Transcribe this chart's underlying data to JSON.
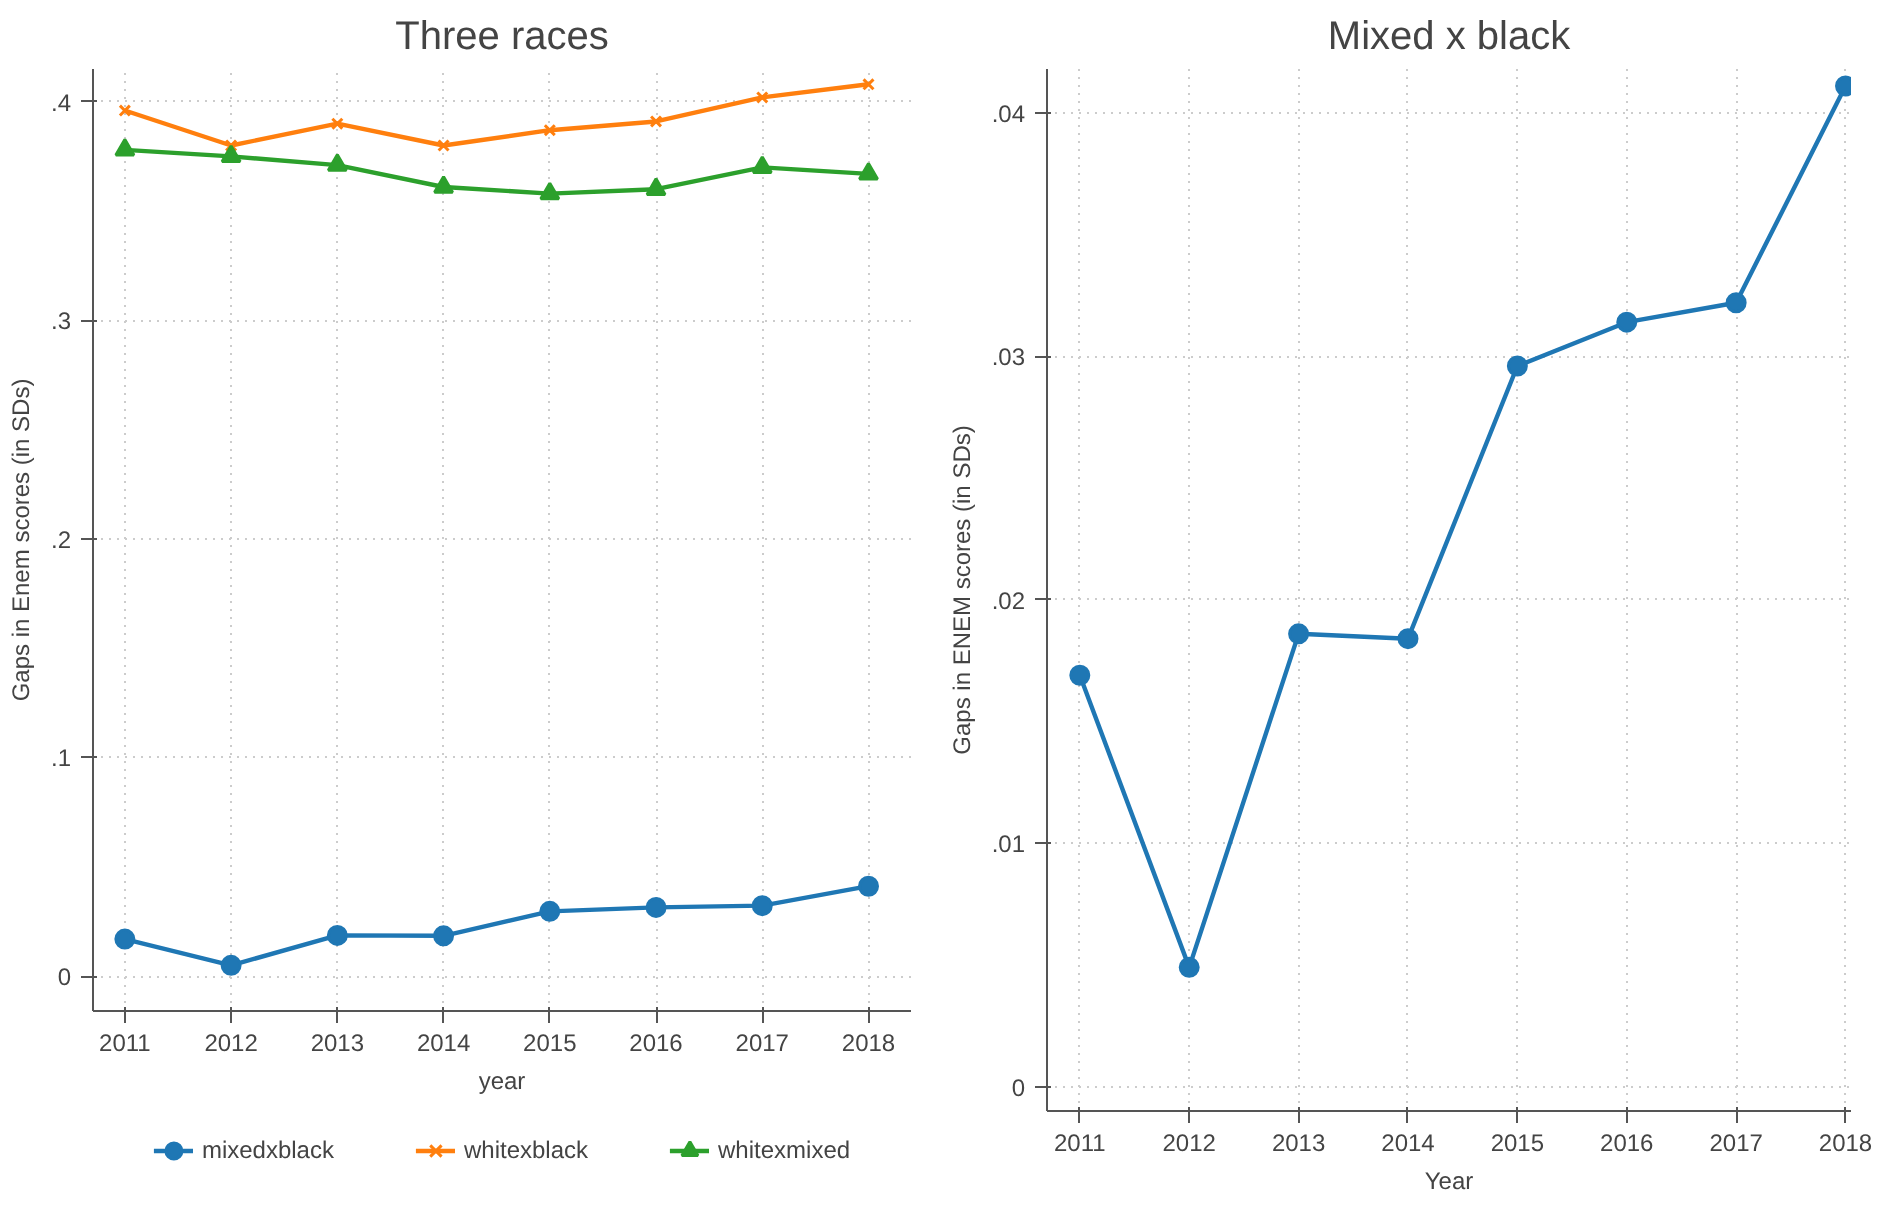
{
  "chart_data": [
    {
      "type": "line",
      "title": "Three races",
      "xlabel": "year",
      "ylabel": "Gaps in Enem scores (in SDs)",
      "x": [
        2011,
        2012,
        2013,
        2014,
        2015,
        2016,
        2017,
        2018
      ],
      "xlim": [
        2010.7,
        2018.4
      ],
      "xticks": [
        2011,
        2012,
        2013,
        2014,
        2015,
        2016,
        2017,
        2018
      ],
      "ylim": [
        -0.016,
        0.415
      ],
      "yticks": [
        {
          "value": 0,
          "label": "0"
        },
        {
          "value": 0.1,
          "label": ".1"
        },
        {
          "value": 0.2,
          "label": ".2"
        },
        {
          "value": 0.3,
          "label": ".3"
        },
        {
          "value": 0.4,
          "label": ".4"
        }
      ],
      "grid": true,
      "legend": "bottom",
      "line_style": "solid",
      "series": [
        {
          "name": "mixedxblack",
          "color": "#1f77b4",
          "marker": "circle",
          "values": [
            0.0169,
            0.0049,
            0.0186,
            0.0184,
            0.0296,
            0.0314,
            0.0322,
            0.0411
          ]
        },
        {
          "name": "whitexblack",
          "color": "#ff7f0e",
          "marker": "cross",
          "values": [
            0.396,
            0.38,
            0.39,
            0.38,
            0.387,
            0.391,
            0.402,
            0.408
          ]
        },
        {
          "name": "whitexmixed",
          "color": "#2ca02c",
          "marker": "triangle",
          "values": [
            0.378,
            0.375,
            0.371,
            0.361,
            0.358,
            0.36,
            0.37,
            0.367
          ]
        }
      ]
    },
    {
      "type": "line",
      "title": "Mixed x black",
      "xlabel": "Year",
      "ylabel": "Gaps in ENEM scores (in SDs)",
      "x": [
        2011,
        2012,
        2013,
        2014,
        2015,
        2016,
        2017,
        2018
      ],
      "xlim": [
        2010.7,
        2018.05
      ],
      "xticks": [
        2011,
        2012,
        2013,
        2014,
        2015,
        2016,
        2017,
        2018
      ],
      "ylim": [
        -0.001,
        0.0418
      ],
      "yticks": [
        {
          "value": 0,
          "label": "0"
        },
        {
          "value": 0.01,
          "label": ".01"
        },
        {
          "value": 0.02,
          "label": ".02"
        },
        {
          "value": 0.03,
          "label": ".03"
        },
        {
          "value": 0.04,
          "label": ".04"
        }
      ],
      "grid": true,
      "legend": false,
      "line_style": "solid",
      "series": [
        {
          "color": "#1f77b4",
          "marker": "circle",
          "values": [
            0.0169,
            0.0049,
            0.0186,
            0.0184,
            0.0296,
            0.0314,
            0.0322,
            0.0411
          ]
        }
      ]
    }
  ]
}
